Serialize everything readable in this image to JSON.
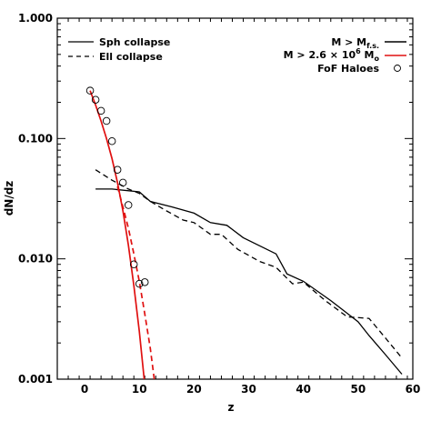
{
  "chart_data": {
    "type": "line",
    "xlabel": "z",
    "ylabel": "dN/dz",
    "xlim": [
      -5,
      60
    ],
    "ylim": [
      0.001,
      1.0
    ],
    "yscale": "log",
    "x_ticks": [
      0,
      10,
      20,
      30,
      40,
      50,
      60
    ],
    "x_tick_labels": [
      "0",
      "10",
      "20",
      "30",
      "40",
      "50",
      "60"
    ],
    "y_ticks": [
      0.001,
      0.01,
      0.1,
      1.0
    ],
    "y_tick_labels": [
      "0.001",
      "0.010",
      "0.100",
      "1.000"
    ],
    "grid": false,
    "legend_left": [
      {
        "label": "Sph collapse",
        "style": "solid"
      },
      {
        "label": "Ell collapse",
        "style": "dashed"
      }
    ],
    "legend_right": [
      {
        "label": "M > M",
        "sub": "f.s.",
        "style": "solid",
        "color": "#000000"
      },
      {
        "label": "M > 2.6 × 10",
        "sup": "6",
        "after": " M",
        "sub": "o",
        "style": "solid",
        "color": "#e01010"
      },
      {
        "label": "FoF Haloes",
        "style": "circle",
        "color": "#000000"
      }
    ],
    "series": [
      {
        "style": "solid",
        "color": "#000000",
        "x": [
          2,
          5,
          10,
          12,
          16,
          20,
          23,
          26,
          29,
          35,
          37,
          40,
          45,
          50,
          52,
          55,
          58
        ],
        "y": [
          0.038,
          0.038,
          0.036,
          0.03,
          0.027,
          0.024,
          0.02,
          0.019,
          0.015,
          0.011,
          0.0075,
          0.0065,
          0.0045,
          0.003,
          0.0023,
          0.0016,
          0.0011
        ]
      },
      {
        "style": "dashed",
        "color": "#000000",
        "x": [
          2,
          5,
          8,
          10,
          12,
          15,
          18,
          20,
          23,
          25,
          28,
          32,
          35,
          38,
          40,
          44,
          48,
          52,
          55,
          58
        ],
        "y": [
          0.055,
          0.045,
          0.038,
          0.035,
          0.03,
          0.025,
          0.021,
          0.02,
          0.016,
          0.016,
          0.012,
          0.0095,
          0.0085,
          0.0062,
          0.0064,
          0.0045,
          0.0033,
          0.0032,
          0.0022,
          0.0015
        ]
      },
      {
        "style": "solid",
        "color": "#e01010",
        "x": [
          1,
          2,
          3,
          4,
          5,
          6,
          7,
          8,
          9,
          10,
          11
        ],
        "y": [
          0.25,
          0.19,
          0.14,
          0.1,
          0.068,
          0.043,
          0.025,
          0.013,
          0.006,
          0.0025,
          0.0009
        ]
      },
      {
        "style": "dashed",
        "color": "#e01010",
        "x": [
          6,
          7,
          8,
          9,
          10,
          11,
          12,
          13
        ],
        "y": [
          0.04,
          0.027,
          0.018,
          0.011,
          0.0065,
          0.0035,
          0.0018,
          0.0008
        ]
      },
      {
        "style": "circle",
        "color": "#000000",
        "x": [
          1,
          2,
          3,
          4,
          5,
          6,
          7,
          8,
          9,
          10,
          11
        ],
        "y": [
          0.25,
          0.21,
          0.17,
          0.14,
          0.095,
          0.055,
          0.043,
          0.028,
          0.009,
          0.0062,
          0.0064
        ]
      }
    ]
  }
}
